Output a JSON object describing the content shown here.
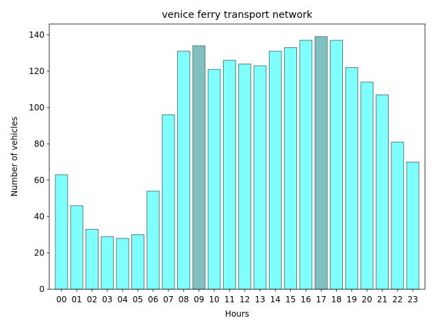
{
  "chart_data": {
    "type": "bar",
    "title": "venice ferry transport network",
    "xlabel": "Hours",
    "ylabel": "Number of vehicles",
    "categories": [
      "00",
      "01",
      "02",
      "03",
      "04",
      "05",
      "06",
      "07",
      "08",
      "09",
      "10",
      "11",
      "12",
      "13",
      "14",
      "15",
      "16",
      "17",
      "18",
      "19",
      "20",
      "21",
      "22",
      "23"
    ],
    "values": [
      63,
      46,
      33,
      29,
      28,
      30,
      54,
      96,
      131,
      134,
      121,
      126,
      124,
      123,
      131,
      133,
      137,
      139,
      137,
      122,
      114,
      107,
      81,
      70
    ],
    "highlighted": [
      "09",
      "17"
    ],
    "ylim": [
      0,
      146
    ],
    "yticks": [
      0,
      20,
      40,
      60,
      80,
      100,
      120,
      140
    ],
    "grid": false,
    "legend": "none",
    "colors": {
      "bar": "#80ffff",
      "bar_highlight": "#80c0c0",
      "bar_edge": "#4d8080"
    }
  }
}
